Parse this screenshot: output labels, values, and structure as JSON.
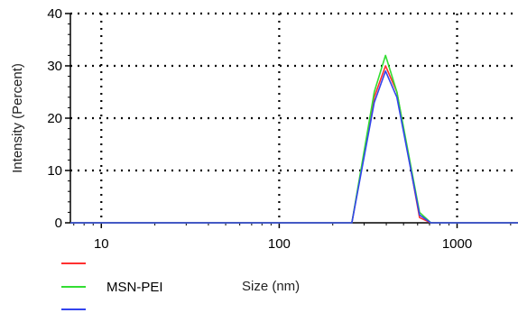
{
  "chart_data": {
    "type": "line",
    "ylabel": "Intensity (Percent)",
    "xlabel": "Size (nm)",
    "x_scale": "log",
    "xlim": [
      6.7,
      2200
    ],
    "ylim": [
      0,
      40
    ],
    "x_ticks": [
      10,
      100,
      1000
    ],
    "x_tick_labels": [
      "10",
      "100",
      "1000"
    ],
    "y_ticks": [
      0,
      10,
      20,
      30,
      40
    ],
    "y_tick_labels": [
      "0",
      "10",
      "20",
      "30",
      "40"
    ],
    "grid": true,
    "grid_style": "dotted",
    "legend_placement": "bottom-left",
    "series": [
      {
        "name": "",
        "color": "#ff3030",
        "x": [
          6.7,
          256,
          342,
          396,
          459,
          615,
          712,
          2200
        ],
        "y": [
          0,
          0,
          24,
          30,
          25,
          1,
          0,
          0
        ]
      },
      {
        "name": "MSN-PEI",
        "color": "#33dd33",
        "x": [
          6.7,
          256,
          342,
          396,
          459,
          615,
          712,
          2200
        ],
        "y": [
          0,
          0,
          25,
          32,
          25,
          2,
          0,
          0
        ]
      },
      {
        "name": "",
        "color": "#3344ee",
        "x": [
          6.7,
          256,
          342,
          396,
          459,
          615,
          712,
          2200
        ],
        "y": [
          0,
          0,
          23,
          29,
          24,
          1.5,
          0,
          0
        ]
      }
    ]
  }
}
